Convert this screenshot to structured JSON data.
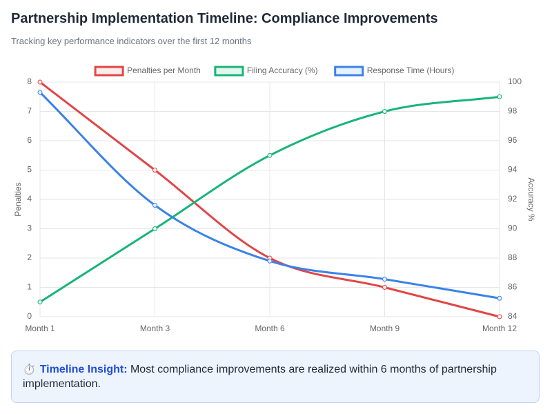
{
  "header": {
    "title": "Partnership Implementation Timeline: Compliance Improvements",
    "subtitle": "Tracking key performance indicators over the first 12 months"
  },
  "insight": {
    "icon": "⏱️",
    "label": "Timeline Insight:",
    "text": "Most compliance improvements are realized within 6 months of partnership implementation."
  },
  "chart_data": {
    "type": "line",
    "categories": [
      "Month 1",
      "Month 3",
      "Month 6",
      "Month 9",
      "Month 12"
    ],
    "legend_position": "top",
    "grid": true,
    "y_left": {
      "label": "Penalties",
      "ylim": [
        0,
        8
      ],
      "ticks": [
        0,
        1,
        2,
        3,
        4,
        5,
        6,
        7,
        8
      ]
    },
    "y_right": {
      "label": "Accuracy %",
      "ylim": [
        84,
        100
      ],
      "ticks": [
        84,
        86,
        88,
        90,
        92,
        94,
        96,
        98,
        100
      ]
    },
    "series": [
      {
        "name": "Penalties per Month",
        "axis": "left",
        "values": [
          8,
          5,
          2,
          1,
          0
        ],
        "color": "#e04646",
        "fill": "#fdecec"
      },
      {
        "name": "Filing Accuracy (%)",
        "axis": "right",
        "values": [
          85,
          90,
          95,
          98,
          99
        ],
        "color": "#18b47a",
        "fill": "#e3f6ee"
      },
      {
        "name": "Response Time (Hours)",
        "axis": "left",
        "values": [
          7.65,
          3.8,
          1.9,
          1.28,
          0.63
        ],
        "color": "#3b82e8",
        "fill": "#e7f0fd"
      }
    ]
  }
}
